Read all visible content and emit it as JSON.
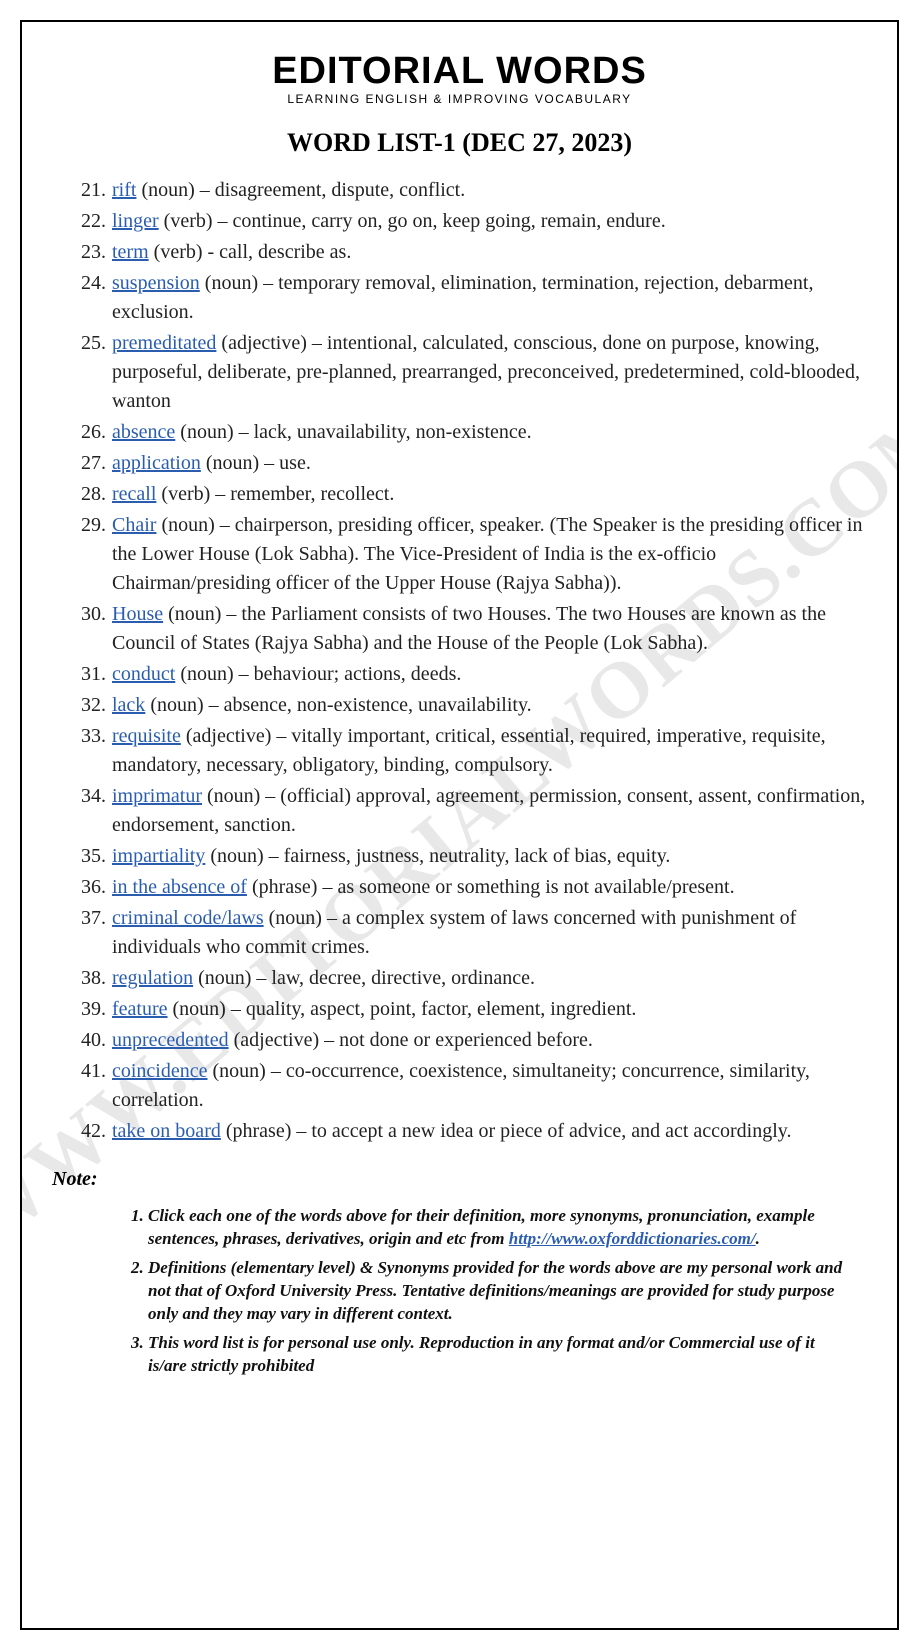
{
  "brand": "EDITORIAL WORDS",
  "tagline": "LEARNING ENGLISH & IMPROVING VOCABULARY",
  "title": "WORD LIST-1 (DEC 27, 2023)",
  "watermark": "WWW.EDITORIALWORDS.COM",
  "link_color": "#2a5db0",
  "text_color": "#222222",
  "start_number": 21,
  "entries": [
    {
      "n": 21,
      "term": "rift",
      "pos": "(noun)",
      "def": "– disagreement, dispute, conflict."
    },
    {
      "n": 22,
      "term": "linger",
      "pos": "(verb)",
      "def": "– continue, carry on, go on, keep going, remain, endure."
    },
    {
      "n": 23,
      "term": "term",
      "pos": "(verb)",
      "def": "- call, describe as."
    },
    {
      "n": 24,
      "term": "suspension",
      "pos": "(noun)",
      "def": "– temporary removal, elimination, termination, rejection, debarment, exclusion."
    },
    {
      "n": 25,
      "term": "premeditated",
      "pos": "(adjective)",
      "def": "– intentional, calculated, conscious, done on purpose, knowing, purposeful, deliberate, pre-planned, prearranged, preconceived, predetermined, cold-blooded, wanton"
    },
    {
      "n": 26,
      "term": "absence",
      "pos": "(noun)",
      "def": "– lack, unavailability, non-existence."
    },
    {
      "n": 27,
      "term": "application",
      "pos": "(noun)",
      "def": "– use."
    },
    {
      "n": 28,
      "term": "recall",
      "pos": "(verb)",
      "def": "– remember, recollect."
    },
    {
      "n": 29,
      "term": "Chair",
      "pos": "(noun)",
      "def": "– chairperson, presiding officer, speaker. (The Speaker is the presiding officer in the Lower House (Lok Sabha). The Vice-President of India is the ex-officio Chairman/presiding officer of the Upper House (Rajya Sabha))."
    },
    {
      "n": 30,
      "term": "House",
      "pos": "(noun)",
      "def": "– the Parliament consists of two Houses. The two Houses are known as the Council of States (Rajya Sabha) and the House of the People (Lok Sabha)."
    },
    {
      "n": 31,
      "term": "conduct",
      "pos": "(noun)",
      "def": "– behaviour; actions, deeds."
    },
    {
      "n": 32,
      "term": "lack",
      "pos": "(noun)",
      "def": "– absence, non-existence, unavailability."
    },
    {
      "n": 33,
      "term": "requisite",
      "pos": "(adjective)",
      "def": "– vitally important, critical, essential, required, imperative, requisite, mandatory, necessary, obligatory, binding, compulsory."
    },
    {
      "n": 34,
      "term": "imprimatur",
      "pos": "(noun)",
      "def": "– (official) approval, agreement, permission, consent, assent, confirmation, endorsement, sanction."
    },
    {
      "n": 35,
      "term": "impartiality",
      "pos": "(noun)",
      "def": "– fairness, justness, neutrality, lack of bias, equity."
    },
    {
      "n": 36,
      "term": "in the absence of",
      "pos": "(phrase)",
      "def": "– as someone or something is not available/present."
    },
    {
      "n": 37,
      "term": "criminal code/laws",
      "pos": "(noun)",
      "def": "– a complex system of laws concerned with punishment of individuals who commit crimes."
    },
    {
      "n": 38,
      "term": "regulation",
      "pos": "(noun)",
      "def": "– law, decree, directive, ordinance."
    },
    {
      "n": 39,
      "term": "feature",
      "pos": "(noun)",
      "def": "– quality, aspect, point, factor, element, ingredient."
    },
    {
      "n": 40,
      "term": "unprecedented",
      "pos": "(adjective)",
      "def": "– not done or experienced before."
    },
    {
      "n": 41,
      "term": "coincidence",
      "pos": "(noun)",
      "def": "– co-occurrence, coexistence, simultaneity; concurrence, similarity, correlation."
    },
    {
      "n": 42,
      "term": "take on board",
      "pos": "(phrase)",
      "def": "– to accept a new idea or piece of advice, and act accordingly."
    }
  ],
  "note_heading": "Note:",
  "notes": [
    {
      "pre": "Click each one of the words above for their definition, more synonyms, pronunciation, example sentences, phrases, derivatives, origin and etc from ",
      "link": "http://www.oxforddictionaries.com/",
      "post": "."
    },
    {
      "pre": "Definitions (elementary level) & Synonyms provided for the words above are my personal work and not that of Oxford University Press. Tentative definitions/meanings are provided for study purpose only and they may vary in different context.",
      "link": "",
      "post": ""
    },
    {
      "pre": "This word list is for personal use only. Reproduction in any format and/or Commercial use of it is/are strictly prohibited",
      "link": "",
      "post": ""
    }
  ]
}
